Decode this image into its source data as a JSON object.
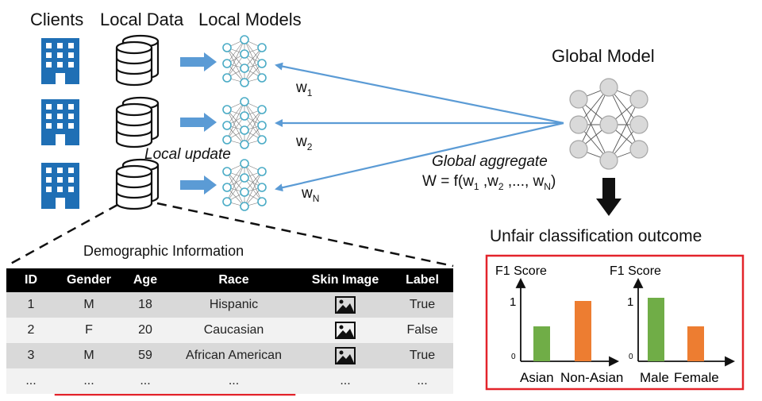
{
  "headers": {
    "clients": "Clients",
    "local_data": "Local Data",
    "local_models": "Local Models",
    "global_model": "Global Model"
  },
  "local_update": "Local update",
  "weights": [
    "w",
    "w",
    "w"
  ],
  "weight_subs": [
    "1",
    "2",
    "N"
  ],
  "global_aggregate": "Global aggregate",
  "formula": {
    "prefix": "W = f(w",
    "s1": "1",
    "m1": " ,w",
    "s2": "2",
    "m2": " ,..., w",
    "s3": "N",
    "end": ")"
  },
  "unfair_title": "Unfair classification outcome",
  "demographic_title": "Demographic Information",
  "table": {
    "headers": [
      "ID",
      "Gender",
      "Age",
      "Race",
      "Skin Image",
      "Label"
    ],
    "rows": [
      [
        "1",
        "M",
        "18",
        "Hispanic",
        "",
        "True"
      ],
      [
        "2",
        "F",
        "20",
        "Caucasian",
        "",
        "False"
      ],
      [
        "3",
        "M",
        "59",
        "African American",
        "",
        "True"
      ],
      [
        "...",
        "...",
        "...",
        "...",
        "...",
        "..."
      ]
    ]
  },
  "charts": {
    "left": {
      "ylabel": "F1 Score",
      "ytick_top": "1",
      "ytick_bottom": "0",
      "categories": [
        "Asian",
        "Non-Asian"
      ]
    },
    "right": {
      "ylabel": "F1 Score",
      "ytick_top": "1",
      "ytick_bottom": "0",
      "categories": [
        "Male",
        "Female"
      ]
    }
  },
  "chart_data": [
    {
      "type": "bar",
      "categories": [
        "Asian",
        "Non-Asian"
      ],
      "values": [
        0.55,
        0.95
      ],
      "ylabel": "F1 Score",
      "ylim": [
        0,
        1.25
      ],
      "colors": [
        "#70ad47",
        "#ed7d31"
      ]
    },
    {
      "type": "bar",
      "categories": [
        "Male",
        "Female"
      ],
      "values": [
        1.0,
        0.55
      ],
      "ylabel": "F1 Score",
      "ylim": [
        0,
        1.25
      ],
      "colors": [
        "#70ad47",
        "#ed7d31"
      ]
    }
  ],
  "colors": {
    "building": "#1f6fb5",
    "arrow": "#5b9bd5",
    "node_local": "#4bacc6",
    "node_global": "#d9d9d9",
    "red_box": "#e3242b",
    "bar_green": "#70ad47",
    "bar_orange": "#ed7d31"
  },
  "icons": [
    "building-icon",
    "database-icon",
    "neural-network-icon",
    "image-icon",
    "arrow-down-icon"
  ]
}
